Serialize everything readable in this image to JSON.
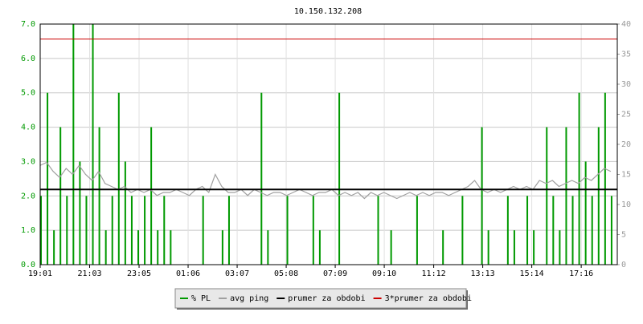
{
  "chart_data": {
    "type": "rrd",
    "title": "10.150.132.208",
    "xlim": [
      0,
      1424
    ],
    "xticks": [
      {
        "value": 0,
        "label": "19:01"
      },
      {
        "value": 122,
        "label": "21:03"
      },
      {
        "value": 244,
        "label": "23:05"
      },
      {
        "value": 365,
        "label": "01:06"
      },
      {
        "value": 486,
        "label": "03:07"
      },
      {
        "value": 607,
        "label": "05:08"
      },
      {
        "value": 728,
        "label": "07:09"
      },
      {
        "value": 849,
        "label": "09:10"
      },
      {
        "value": 971,
        "label": "11:12"
      },
      {
        "value": 1092,
        "label": "13:13"
      },
      {
        "value": 1213,
        "label": "15:14"
      },
      {
        "value": 1335,
        "label": "17:16"
      }
    ],
    "ylim": [
      0,
      7
    ],
    "yticks": [
      {
        "value": 0,
        "label": "0.0"
      },
      {
        "value": 1,
        "label": "1.0"
      },
      {
        "value": 2,
        "label": "2.0"
      },
      {
        "value": 3,
        "label": "3.0"
      },
      {
        "value": 4,
        "label": "4.0"
      },
      {
        "value": 5,
        "label": "5.0"
      },
      {
        "value": 6,
        "label": "6.0"
      },
      {
        "value": 7,
        "label": "7.0"
      }
    ],
    "y2lim": [
      0,
      40
    ],
    "y2ticks": [
      0,
      5,
      10,
      15,
      20,
      25,
      30,
      35,
      40
    ],
    "grid": true,
    "x": [
      0,
      16,
      32,
      48,
      64,
      80,
      96,
      112,
      128,
      144,
      160,
      176,
      192,
      208,
      224,
      240,
      256,
      272,
      288,
      304,
      320,
      336,
      352,
      368,
      384,
      400,
      416,
      432,
      448,
      464,
      480,
      496,
      512,
      528,
      544,
      560,
      576,
      592,
      608,
      624,
      640,
      656,
      672,
      688,
      704,
      720,
      736,
      752,
      768,
      784,
      800,
      816,
      832,
      848,
      864,
      880,
      896,
      912,
      928,
      944,
      960,
      976,
      992,
      1008,
      1024,
      1040,
      1056,
      1072,
      1088,
      1104,
      1120,
      1136,
      1152,
      1168,
      1184,
      1200,
      1216,
      1232,
      1248,
      1264,
      1280,
      1296,
      1312,
      1328,
      1344,
      1360,
      1376,
      1392,
      1408
    ],
    "series": [
      {
        "name": "% PL",
        "color": "#009900",
        "kind": "bars",
        "values": [
          2,
          5,
          1,
          4,
          2,
          7,
          3,
          2,
          7,
          4,
          1,
          2,
          5,
          3,
          2,
          1,
          2,
          4,
          1,
          2,
          1,
          0,
          0,
          0,
          0,
          2,
          0,
          0,
          1,
          2,
          0,
          0,
          0,
          0,
          5,
          1,
          0,
          0,
          2,
          0,
          0,
          0,
          2,
          1,
          0,
          0,
          5,
          0,
          0,
          0,
          0,
          0,
          2,
          0,
          1,
          0,
          0,
          0,
          2,
          0,
          0,
          0,
          1,
          0,
          0,
          2,
          0,
          0,
          4,
          1,
          0,
          0,
          2,
          1,
          0,
          2,
          1,
          0,
          4,
          2,
          1,
          4,
          2,
          5,
          3,
          2,
          4,
          5,
          2
        ]
      },
      {
        "name": "avg ping",
        "color": "#a0a0a0",
        "kind": "line",
        "axis": "y2",
        "values": [
          16.5,
          17,
          15.5,
          14.5,
          16,
          15,
          16.5,
          15,
          14,
          15.5,
          13.5,
          13,
          12.5,
          13,
          12,
          12.5,
          12,
          12.5,
          11.5,
          12,
          12,
          12.5,
          12,
          11.5,
          12.5,
          13,
          12,
          15,
          13,
          12,
          12,
          12.5,
          11.5,
          12.5,
          12,
          11.5,
          12,
          12,
          11.5,
          12,
          12.5,
          12,
          11.5,
          12,
          12,
          12.5,
          11.5,
          12,
          11.5,
          12,
          11,
          12,
          11.5,
          12,
          11.5,
          11,
          11.5,
          12,
          11.5,
          12,
          11.5,
          12,
          12,
          11.5,
          12,
          12.5,
          13,
          14,
          12.5,
          12,
          12.5,
          12,
          12.5,
          13,
          12.5,
          13,
          12.5,
          14,
          13.5,
          14,
          13,
          13.5,
          14,
          13.5,
          14.5,
          14,
          15,
          16,
          15.5
        ]
      },
      {
        "name": "prumer za obdobi",
        "color": "#000000",
        "kind": "hline",
        "axis": "y2",
        "value": 12.5
      },
      {
        "name": "3*prumer za obdobi",
        "color": "#cc0000",
        "kind": "hline",
        "axis": "y2",
        "value": 37.5
      }
    ]
  }
}
